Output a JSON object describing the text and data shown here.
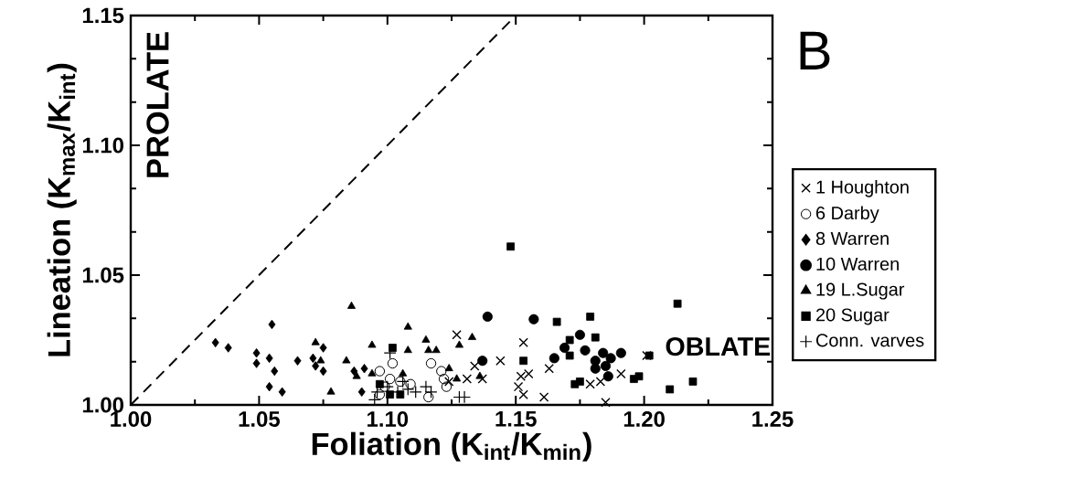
{
  "chart_data": {
    "type": "scatter",
    "xlabel": "Foliation (K$_{int}$/K$_{min}$)",
    "ylabel": "Lineation (K$_{max}$/K$_{int}$)",
    "annotations": [
      "PROLATE",
      "OBLATE",
      "B"
    ],
    "xlim": [
      1.0,
      1.25
    ],
    "ylim": [
      1.0,
      1.15
    ],
    "xticks": [
      {
        "value": 1.0,
        "label": "1.00"
      },
      {
        "value": 1.05,
        "label": "1.05"
      },
      {
        "value": 1.1,
        "label": "1.10"
      },
      {
        "value": 1.15,
        "label": "1.15"
      },
      {
        "value": 1.2,
        "label": "1.20"
      },
      {
        "value": 1.25,
        "label": "1.25"
      }
    ],
    "yticks": [
      {
        "value": 1.0,
        "label": "1.00"
      },
      {
        "value": 1.05,
        "label": "1.05"
      },
      {
        "value": 1.1,
        "label": "1.10"
      },
      {
        "value": 1.15,
        "label": "1.15"
      }
    ],
    "legend": "right",
    "series": [
      {
        "name": "1 Houghton",
        "color": "#000000",
        "marker": "cross",
        "x": [
          1.127,
          1.153,
          1.144,
          1.134,
          1.131,
          1.137,
          1.163,
          1.155,
          1.152,
          1.151,
          1.153,
          1.161,
          1.179,
          1.183,
          1.191,
          1.185,
          1.201,
          1.124
        ],
        "values": [
          1.027,
          1.024,
          1.017,
          1.015,
          1.01,
          1.01,
          1.014,
          1.012,
          1.011,
          1.007,
          1.004,
          1.003,
          1.008,
          1.009,
          1.012,
          1.001,
          1.019,
          1.009
        ]
      },
      {
        "name": "6 Darby",
        "color": "#000000",
        "marker": "open circle",
        "x": [
          1.097,
          1.102,
          1.101,
          1.099,
          1.105,
          1.109,
          1.117,
          1.121,
          1.122,
          1.123,
          1.097,
          1.116
        ],
        "values": [
          1.013,
          1.016,
          1.01,
          1.007,
          1.009,
          1.008,
          1.016,
          1.013,
          1.01,
          1.007,
          1.004,
          1.003
        ]
      },
      {
        "name": "8 Warren",
        "color": "#000000",
        "marker": "diamond",
        "x": [
          1.033,
          1.038,
          1.049,
          1.049,
          1.054,
          1.055,
          1.056,
          1.054,
          1.059,
          1.065,
          1.071,
          1.072,
          1.075,
          1.075,
          1.087,
          1.091,
          1.09
        ],
        "values": [
          1.024,
          1.022,
          1.02,
          1.016,
          1.018,
          1.031,
          1.013,
          1.007,
          1.005,
          1.017,
          1.018,
          1.015,
          1.022,
          1.013,
          1.013,
          1.014,
          1.005
        ]
      },
      {
        "name": "10 Warren",
        "color": "#000000",
        "marker": "circle",
        "x": [
          1.139,
          1.157,
          1.137,
          1.165,
          1.169,
          1.175,
          1.177,
          1.181,
          1.184,
          1.187,
          1.191,
          1.181,
          1.185,
          1.186
        ],
        "values": [
          1.034,
          1.033,
          1.017,
          1.018,
          1.022,
          1.027,
          1.021,
          1.017,
          1.02,
          1.018,
          1.02,
          1.014,
          1.015,
          1.011
        ]
      },
      {
        "name": "19 L.Sugar",
        "color": "#000000",
        "marker": "triangle",
        "x": [
          1.086,
          1.072,
          1.074,
          1.078,
          1.084,
          1.088,
          1.094,
          1.094,
          1.108,
          1.108,
          1.115,
          1.116,
          1.119,
          1.106,
          1.124,
          1.128,
          1.133,
          1.127,
          1.136
        ],
        "values": [
          1.038,
          1.024,
          1.017,
          1.005,
          1.017,
          1.011,
          1.012,
          1.023,
          1.03,
          1.021,
          1.025,
          1.021,
          1.021,
          1.012,
          1.014,
          1.023,
          1.026,
          1.01,
          1.011
        ]
      },
      {
        "name": "20 Sugar",
        "color": "#000000",
        "marker": "square",
        "x": [
          1.148,
          1.213,
          1.166,
          1.179,
          1.171,
          1.181,
          1.171,
          1.153,
          1.202,
          1.173,
          1.175,
          1.196,
          1.198,
          1.21,
          1.219,
          1.102,
          1.097,
          1.101,
          1.105
        ],
        "values": [
          1.061,
          1.039,
          1.032,
          1.034,
          1.025,
          1.026,
          1.019,
          1.017,
          1.019,
          1.008,
          1.009,
          1.01,
          1.011,
          1.006,
          1.009,
          1.022,
          1.008,
          1.004,
          1.004
        ]
      },
      {
        "name": "Conn. varves",
        "color": "#000000",
        "marker": "plus",
        "x": [
          1.101,
          1.096,
          1.1,
          1.104,
          1.108,
          1.111,
          1.115,
          1.117,
          1.128,
          1.13,
          1.106,
          1.095
        ],
        "values": [
          1.02,
          1.005,
          1.007,
          1.005,
          1.006,
          1.005,
          1.007,
          1.005,
          1.003,
          1.003,
          1.009,
          1.002
        ]
      },
      {
        "type": "line",
        "color": "#000000",
        "line_style": "dashed",
        "marker": "none",
        "x": [
          1.0,
          1.15
        ],
        "values": [
          1.0,
          1.15
        ]
      }
    ]
  }
}
